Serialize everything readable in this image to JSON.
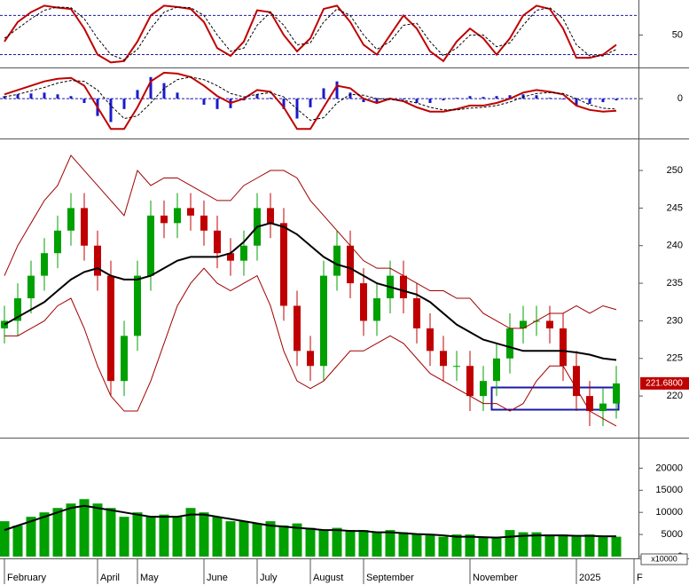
{
  "chart_data": [
    {
      "type": "line",
      "ylim": [
        3,
        101
      ],
      "yticks": [
        50
      ],
      "levels": [
        80,
        20
      ],
      "level_color": "#1a1aa6",
      "series": [
        {
          "color": "#c00000",
          "style": "line",
          "values": [
            40,
            70,
            85,
            95,
            92,
            90,
            60,
            20,
            8,
            10,
            40,
            80,
            95,
            93,
            90,
            70,
            30,
            18,
            40,
            88,
            85,
            50,
            25,
            45,
            90,
            95,
            70,
            35,
            20,
            50,
            80,
            60,
            25,
            10,
            40,
            60,
            45,
            20,
            45,
            80,
            95,
            90,
            60,
            15,
            15,
            20,
            35
          ]
        },
        {
          "color": "#000000",
          "style": "dashed",
          "values": [
            45,
            60,
            75,
            88,
            93,
            92,
            75,
            45,
            20,
            12,
            28,
            60,
            85,
            93,
            92,
            80,
            50,
            25,
            30,
            65,
            85,
            65,
            35,
            38,
            70,
            90,
            80,
            50,
            28,
            40,
            65,
            68,
            40,
            18,
            30,
            50,
            50,
            32,
            38,
            65,
            88,
            92,
            75,
            35,
            18,
            18,
            28
          ]
        }
      ]
    },
    {
      "type": "macd",
      "ylim": [
        -4.4,
        3.3
      ],
      "yticks": [
        0
      ],
      "grid": true,
      "grid_color": "#1a1aa6",
      "series": [
        {
          "color": "#1a1acc",
          "style": "bar",
          "values": [
            0.3,
            0.5,
            0.6,
            0.7,
            0.5,
            0.3,
            -0.5,
            -2.0,
            -2.7,
            -1.2,
            1.0,
            2.5,
            1.8,
            0.7,
            0,
            -0.7,
            -1.2,
            -1.1,
            -0.2,
            0.5,
            0.1,
            -1.2,
            -2.3,
            -1.0,
            1.2,
            2.0,
            0.7,
            -0.4,
            -0.5,
            0.1,
            -0.1,
            -0.5,
            -0.5,
            -0.2,
            0.1,
            0.3,
            0.2,
            0.3,
            0.4,
            0.5,
            0.4,
            0.1,
            -0.1,
            -0.8,
            -0.6,
            -0.4,
            -0.2
          ]
        },
        {
          "color": "#c00000",
          "style": "line",
          "values": [
            0.5,
            1.0,
            1.5,
            2,
            2.3,
            2.4,
            1.5,
            -1,
            -3.5,
            -3.5,
            -1,
            2.0,
            3.0,
            2.9,
            2.5,
            1.5,
            0.3,
            -0.5,
            0,
            1.0,
            0.8,
            -1.0,
            -3.5,
            -3.5,
            -1,
            1.5,
            1.2,
            0,
            -0.5,
            0,
            -0.3,
            -1,
            -1.5,
            -1.5,
            -1.2,
            -0.8,
            -0.8,
            -0.5,
            0,
            0.7,
            1.0,
            0.8,
            0.5,
            -0.8,
            -1.3,
            -1.5,
            -1.4
          ]
        },
        {
          "color": "#000000",
          "style": "dashed",
          "values": [
            0.2,
            0.5,
            0.9,
            1.3,
            1.8,
            2.1,
            2.0,
            1.0,
            -0.8,
            -2.3,
            -2.0,
            -0.5,
            1.2,
            2.2,
            2.5,
            2.2,
            1.5,
            0.6,
            0.2,
            0.5,
            0.7,
            0.2,
            -1.2,
            -2.5,
            -2.2,
            -0.5,
            0.5,
            0.4,
            0,
            -0.1,
            -0.2,
            -0.5,
            -1.0,
            -1.3,
            -1.3,
            -1.1,
            -1.0,
            -0.8,
            -0.4,
            0.2,
            0.6,
            0.7,
            0.6,
            0,
            -0.7,
            -1.1,
            -1.2
          ]
        }
      ]
    },
    {
      "type": "candlestick",
      "ylim": [
        214.7,
        253.9
      ],
      "yticks": [
        220,
        225,
        230,
        235,
        240,
        245,
        250
      ],
      "up_color": "#00a000",
      "down_color": "#c00000",
      "open": [
        229,
        230,
        233,
        236,
        239,
        242,
        245,
        240,
        236,
        222,
        228,
        236,
        244,
        243,
        245,
        244,
        242,
        239,
        238,
        240,
        245,
        243,
        232,
        226,
        224,
        236,
        240,
        235,
        230,
        233,
        236,
        233,
        229,
        226,
        224,
        224,
        220,
        222,
        225,
        229,
        230,
        230,
        229,
        224,
        220,
        218,
        219
      ],
      "high": [
        232,
        235,
        238,
        241,
        244,
        247,
        247,
        242,
        238,
        230,
        238,
        246,
        246,
        247,
        247,
        246,
        244,
        241,
        242,
        247,
        247,
        245,
        234,
        228,
        238,
        242,
        242,
        237,
        235,
        238,
        238,
        235,
        231,
        228,
        226,
        226,
        224,
        227,
        231,
        232,
        232,
        232,
        231,
        226,
        222,
        221,
        224
      ],
      "low": [
        227,
        228,
        231,
        234,
        237,
        240,
        238,
        234,
        220,
        220,
        226,
        234,
        241,
        241,
        242,
        240,
        237,
        236,
        236,
        238,
        241,
        230,
        224,
        222,
        222,
        234,
        233,
        228,
        228,
        231,
        231,
        227,
        224,
        222,
        222,
        218,
        218,
        220,
        223,
        227,
        228,
        227,
        222,
        218,
        216,
        216,
        217
      ],
      "close": [
        230,
        233,
        236,
        239,
        242,
        245,
        240,
        236,
        222,
        228,
        236,
        244,
        243,
        245,
        244,
        242,
        239,
        238,
        240,
        245,
        243,
        232,
        226,
        224,
        236,
        240,
        235,
        230,
        233,
        236,
        233,
        229,
        226,
        224,
        224,
        220,
        222,
        225,
        229,
        230,
        230,
        229,
        224,
        220,
        218,
        219,
        221.68
      ],
      "series": [
        {
          "color": "#000000",
          "style": "thick",
          "values": [
            229.5,
            230.5,
            231.5,
            232.5,
            234,
            235.5,
            236.5,
            237,
            236,
            235.5,
            235.5,
            236,
            237,
            238,
            238.5,
            238.5,
            238.5,
            239,
            240.5,
            242.5,
            243,
            242.5,
            241.5,
            240,
            238.5,
            237.5,
            237,
            236,
            235,
            234.5,
            234,
            233.5,
            232.5,
            231,
            229.5,
            228.5,
            227.5,
            227,
            226.5,
            226,
            226,
            226,
            226,
            225.8,
            225.5,
            225,
            224.8
          ]
        },
        {
          "color": "#a00000",
          "style": "line",
          "values": [
            236,
            240,
            243,
            246,
            248,
            252,
            250,
            248,
            246,
            244,
            250,
            248,
            249,
            249,
            248,
            247,
            246,
            246,
            248,
            249,
            250,
            250,
            249,
            246,
            244,
            242,
            240,
            238,
            237,
            237,
            236,
            235,
            234,
            234,
            233,
            233,
            231,
            230,
            229,
            229,
            230,
            231,
            231,
            232,
            231,
            232,
            231.5
          ]
        },
        {
          "color": "#a00000",
          "style": "line",
          "values": [
            228,
            228,
            229,
            230,
            232,
            233,
            229,
            224,
            220,
            218,
            218,
            222,
            227,
            232,
            235,
            237,
            235,
            234,
            235,
            236,
            232,
            226,
            222,
            221,
            222,
            224,
            226,
            226,
            227,
            228,
            227,
            225,
            223,
            222,
            221,
            220,
            219,
            219,
            218,
            219,
            222,
            224,
            224,
            221,
            218,
            217,
            216
          ]
        }
      ],
      "last_marker": {
        "value": 221.68,
        "label": "221.6800"
      },
      "last_marker_color": "#c00000"
    },
    {
      "type": "bar",
      "ylim": [
        0,
        26300
      ],
      "yticks": [
        0,
        5000,
        10000,
        15000,
        20000
      ],
      "color": "#00a000",
      "values": [
        8000,
        7000,
        9000,
        10000,
        11000,
        12000,
        13000,
        12000,
        11000,
        9000,
        10000,
        9000,
        9500,
        9000,
        11000,
        10000,
        9000,
        8000,
        8000,
        7500,
        8000,
        7000,
        7500,
        6500,
        6000,
        6500,
        6000,
        6000,
        5500,
        6000,
        5500,
        5000,
        5000,
        4500,
        5000,
        5000,
        4500,
        4500,
        6000,
        5500,
        5500,
        5000,
        5000,
        4500,
        5000,
        4500,
        4500
      ],
      "series": [
        {
          "color": "#000000",
          "style": "thick",
          "values": [
            6000,
            7000,
            8000,
            9000,
            10000,
            11000,
            11500,
            11000,
            10500,
            10000,
            9500,
            9000,
            9000,
            9000,
            9500,
            9500,
            9000,
            8500,
            8000,
            7500,
            7000,
            6800,
            6500,
            6300,
            6000,
            6000,
            5800,
            5800,
            5500,
            5500,
            5300,
            5100,
            5000,
            4800,
            4500,
            4500,
            4400,
            4300,
            4500,
            4700,
            4800,
            4800,
            4800,
            4700,
            4700,
            4600,
            4600
          ]
        }
      ],
      "unit_label": "x10000",
      "categories": [
        "February",
        null,
        null,
        null,
        null,
        null,
        null,
        "April",
        null,
        null,
        "May",
        null,
        null,
        null,
        null,
        "June",
        null,
        null,
        null,
        "July",
        null,
        null,
        null,
        "August",
        null,
        null,
        null,
        "September",
        null,
        null,
        null,
        null,
        null,
        null,
        null,
        "November",
        null,
        null,
        null,
        null,
        null,
        null,
        null,
        "2025",
        null,
        null,
        null
      ],
      "x_end_label": "F"
    }
  ]
}
